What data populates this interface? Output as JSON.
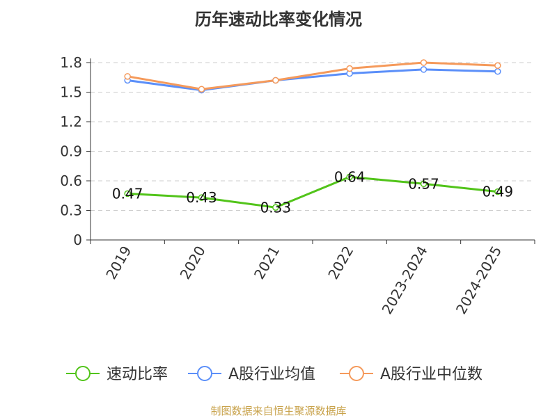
{
  "chart_data": {
    "type": "line",
    "title": "历年速动比率变化情况",
    "categories": [
      "2019",
      "2020",
      "2021",
      "2022",
      "2023-2024",
      "2024-2025"
    ],
    "ylim": [
      0,
      1.8
    ],
    "yticks": [
      0,
      0.3,
      0.6,
      0.9,
      1.2,
      1.5,
      1.8
    ],
    "ytick_labels": [
      "0",
      "0.3",
      "0.6",
      "0.9",
      "1.2",
      "1.5",
      "1.8"
    ],
    "grid": true,
    "legend_position": "bottom",
    "series": [
      {
        "name": "速动比率",
        "color": "#52c41a",
        "values": [
          0.47,
          0.43,
          0.33,
          0.64,
          0.57,
          0.49
        ],
        "show_labels": true
      },
      {
        "name": "A股行业均值",
        "color": "#5b8ff9",
        "values": [
          1.62,
          1.52,
          1.62,
          1.69,
          1.73,
          1.71
        ],
        "show_labels": false
      },
      {
        "name": "A股行业中位数",
        "color": "#f59a5b",
        "values": [
          1.66,
          1.53,
          1.62,
          1.74,
          1.8,
          1.77
        ],
        "show_labels": false
      }
    ],
    "source": "制图数据来自恒生聚源数据库"
  }
}
